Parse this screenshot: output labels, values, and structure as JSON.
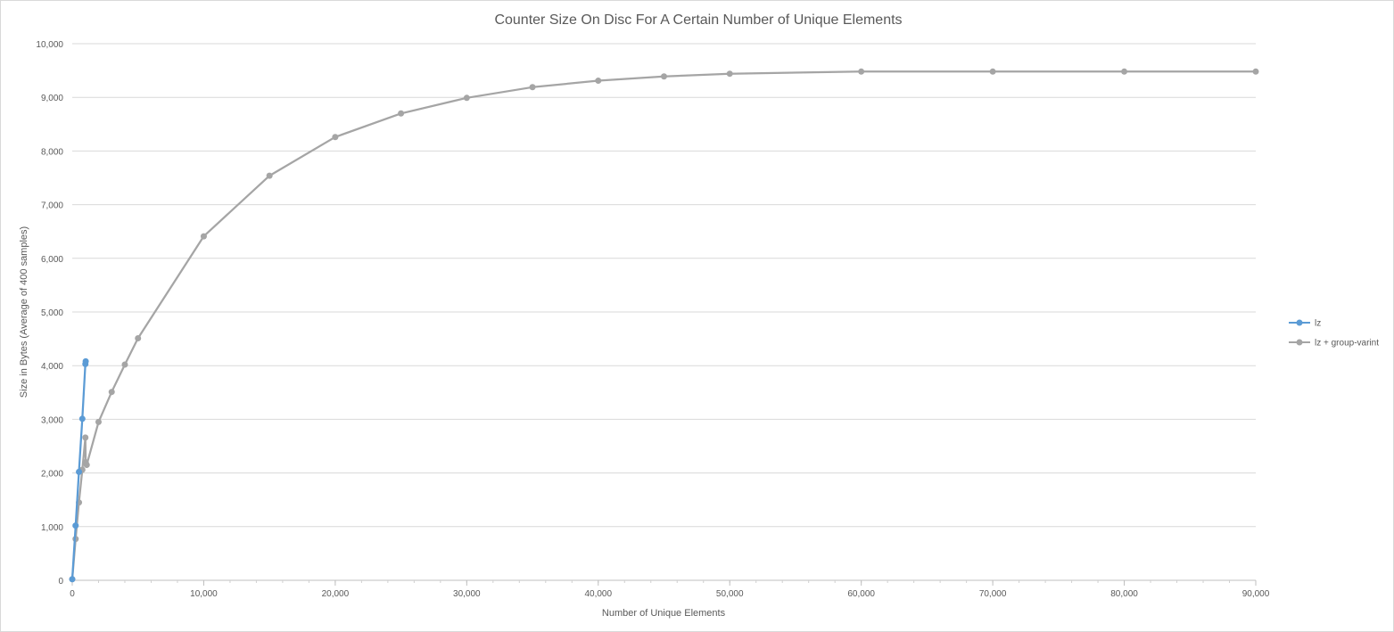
{
  "chart_data": {
    "type": "line",
    "title": "Counter Size On Disc For A Certain Number of Unique Elements",
    "xlabel": "Number of Unique Elements",
    "ylabel": "Size in Bytes (Average of 400 samples)",
    "xlim": [
      0,
      90000
    ],
    "ylim": [
      0,
      10000
    ],
    "x_ticks": [
      0,
      10000,
      20000,
      30000,
      40000,
      50000,
      60000,
      70000,
      80000,
      90000
    ],
    "x_tick_labels": [
      "0",
      "10,000",
      "20,000",
      "30,000",
      "40,000",
      "50,000",
      "60,000",
      "70,000",
      "80,000",
      "90,000"
    ],
    "y_ticks": [
      0,
      1000,
      2000,
      3000,
      4000,
      5000,
      6000,
      7000,
      8000,
      9000,
      10000
    ],
    "y_tick_labels": [
      "0",
      "1,000",
      "2,000",
      "3,000",
      "4,000",
      "5,000",
      "6,000",
      "7,000",
      "8,000",
      "9,000",
      "10,000"
    ],
    "grid": "horizontal",
    "legend_position": "right",
    "series": [
      {
        "name": "lz",
        "color": "#5b9bd5",
        "x": [
          0,
          256,
          512,
          768,
          1000,
          1024
        ],
        "y": [
          20,
          1020,
          2020,
          3010,
          4030,
          4080
        ]
      },
      {
        "name": "lz + group-varint",
        "color": "#a5a5a5",
        "x": [
          0,
          256,
          512,
          768,
          1000,
          1024,
          1100,
          2000,
          3000,
          4000,
          5000,
          10000,
          15000,
          20000,
          25000,
          30000,
          35000,
          40000,
          45000,
          50000,
          60000,
          70000,
          80000,
          90000
        ],
        "y": [
          20,
          770,
          1450,
          2060,
          2660,
          2200,
          2150,
          2950,
          3510,
          4020,
          4510,
          6410,
          7540,
          8260,
          8700,
          8990,
          9190,
          9310,
          9390,
          9440,
          9480,
          9480,
          9480,
          9480
        ]
      }
    ]
  }
}
